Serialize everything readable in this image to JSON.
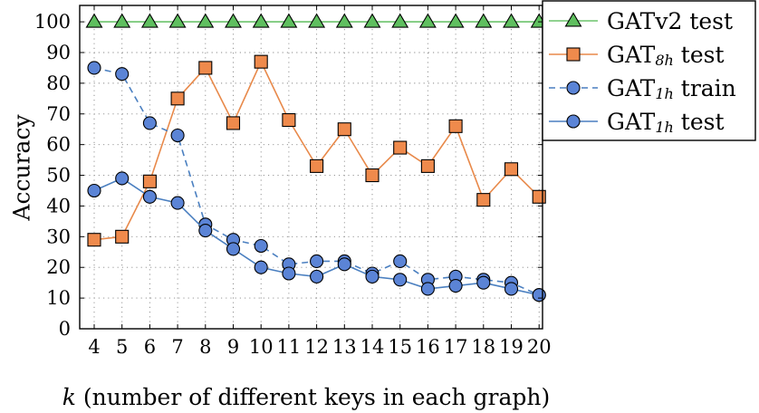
{
  "chart_data": {
    "type": "line",
    "x": [
      4,
      5,
      6,
      7,
      8,
      9,
      10,
      11,
      12,
      13,
      14,
      15,
      16,
      17,
      18,
      19,
      20
    ],
    "xlabel_var": "k",
    "xlabel_rest": " (number of different keys in each graph)",
    "ylabel": "Accuracy",
    "ylim": [
      0,
      100
    ],
    "yticks": [
      0,
      10,
      20,
      30,
      40,
      50,
      60,
      70,
      80,
      90,
      100
    ],
    "grid": true,
    "legend_placement": "top-right",
    "series": [
      {
        "legend_base": "GATv2",
        "legend_sub": "",
        "legend_suffix": " test",
        "color": "#6cc36c",
        "marker_fill": "#5fbf5f",
        "marker": "triangle",
        "dashed": false,
        "values": [
          100,
          100,
          100,
          100,
          100,
          100,
          100,
          100,
          100,
          100,
          100,
          100,
          100,
          100,
          100,
          100,
          100
        ]
      },
      {
        "legend_base": "GAT",
        "legend_sub": "8h",
        "legend_suffix": " test",
        "color": "#e8894a",
        "marker_fill": "#ef8a4c",
        "marker": "square",
        "dashed": false,
        "values": [
          29,
          30,
          48,
          75,
          85,
          67,
          87,
          68,
          53,
          65,
          50,
          59,
          53,
          66,
          42,
          52,
          43
        ]
      },
      {
        "legend_base": "GAT",
        "legend_sub": "1h",
        "legend_suffix": " train",
        "color": "#4a7fc0",
        "marker_fill": "#5b84d6",
        "marker": "circle",
        "dashed": true,
        "values": [
          85,
          83,
          67,
          63,
          34,
          29,
          27,
          21,
          22,
          22,
          18,
          22,
          16,
          17,
          16,
          15,
          11
        ]
      },
      {
        "legend_base": "GAT",
        "legend_sub": "1h",
        "legend_suffix": " test",
        "color": "#4a7fc0",
        "marker_fill": "#5b84d6",
        "marker": "circle",
        "dashed": false,
        "values": [
          45,
          49,
          43,
          41,
          32,
          26,
          20,
          18,
          17,
          21,
          17,
          16,
          13,
          14,
          15,
          13,
          11
        ]
      }
    ]
  }
}
